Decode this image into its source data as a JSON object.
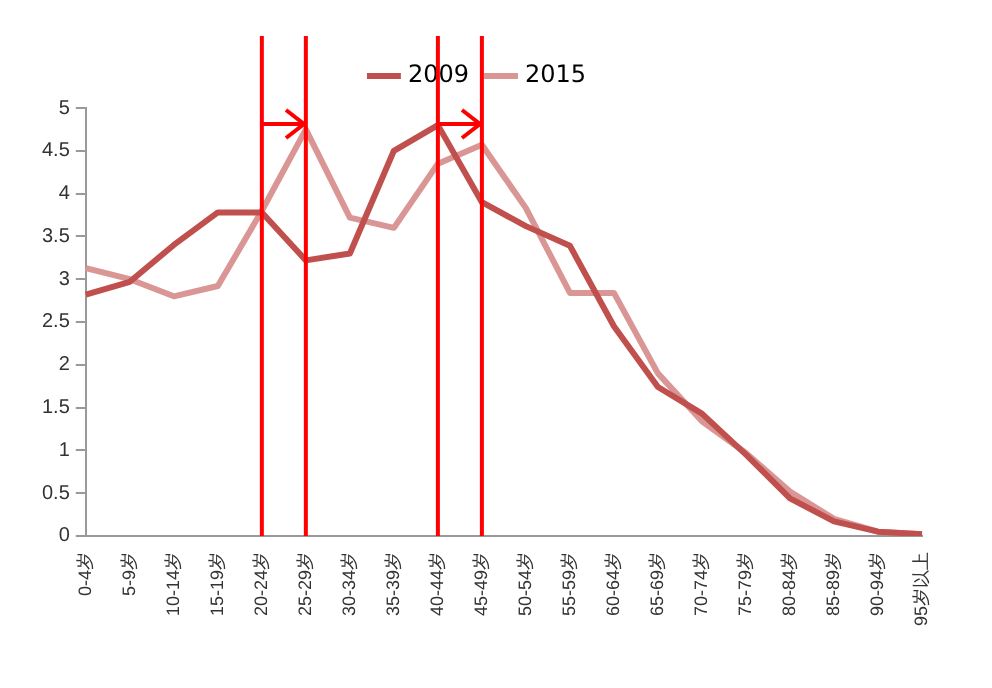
{
  "chart_data": {
    "type": "line",
    "categories": [
      "0-4岁",
      "5-9岁",
      "10-14岁",
      "15-19岁",
      "20-24岁",
      "25-29岁",
      "30-34岁",
      "35-39岁",
      "40-44岁",
      "45-49岁",
      "50-54岁",
      "55-59岁",
      "60-64岁",
      "65-69岁",
      "70-74岁",
      "75-79岁",
      "80-84岁",
      "85-89岁",
      "90-94岁",
      "95岁以上"
    ],
    "series": [
      {
        "name": "2009",
        "color": "#c0504d",
        "values": [
          2.82,
          2.97,
          3.4,
          3.78,
          3.78,
          3.22,
          3.3,
          4.5,
          4.8,
          3.9,
          3.62,
          3.39,
          2.45,
          1.74,
          1.43,
          0.95,
          0.44,
          0.17,
          0.05,
          0.02
        ]
      },
      {
        "name": "2015",
        "color": "#d99694",
        "values": [
          3.13,
          3.0,
          2.8,
          2.92,
          3.8,
          4.75,
          3.72,
          3.6,
          4.35,
          4.57,
          3.83,
          2.84,
          2.84,
          1.9,
          1.34,
          0.97,
          0.52,
          0.2,
          0.05,
          0.02
        ]
      }
    ],
    "ylim": [
      0,
      5
    ],
    "yticks": [
      0,
      0.5,
      1,
      1.5,
      2,
      2.5,
      3,
      3.5,
      4,
      4.5,
      5
    ],
    "grid": false,
    "legend": "top",
    "marker": "none",
    "line_style": "solid",
    "ref_lines": [
      {
        "axis": "x",
        "value": "20-24岁",
        "color": "#ff0000"
      },
      {
        "axis": "x",
        "value": "25-29岁",
        "color": "#ff0000"
      },
      {
        "axis": "x",
        "value": "40-44岁",
        "color": "#ff0000"
      },
      {
        "axis": "x",
        "value": "45-49岁",
        "color": "#ff0000"
      }
    ]
  }
}
